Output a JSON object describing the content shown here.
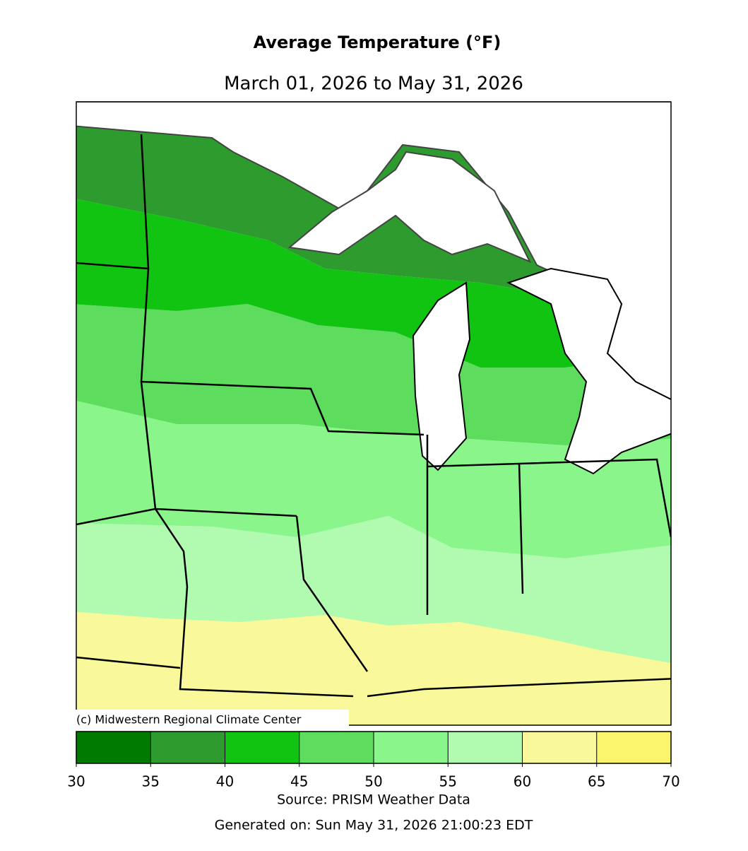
{
  "title": "Average Temperature (°F)",
  "subtitle": "March 01, 2026 to May 31, 2026",
  "credit": "(c) Midwestern Regional Climate Center",
  "colorbar": {
    "lim": [
      30,
      70
    ],
    "ticks": [
      30,
      35,
      40,
      45,
      50,
      55,
      60,
      65,
      70
    ],
    "colors": [
      "#007a00",
      "#2e9b2e",
      "#11c411",
      "#5ddc5d",
      "#8af58a",
      "#b1fbb1",
      "#f9f99b",
      "#fbf56d"
    ]
  },
  "source": "Source: PRISM Weather Data",
  "generated": "Generated on: Sun May 31, 2026 21:00:23 EDT"
}
